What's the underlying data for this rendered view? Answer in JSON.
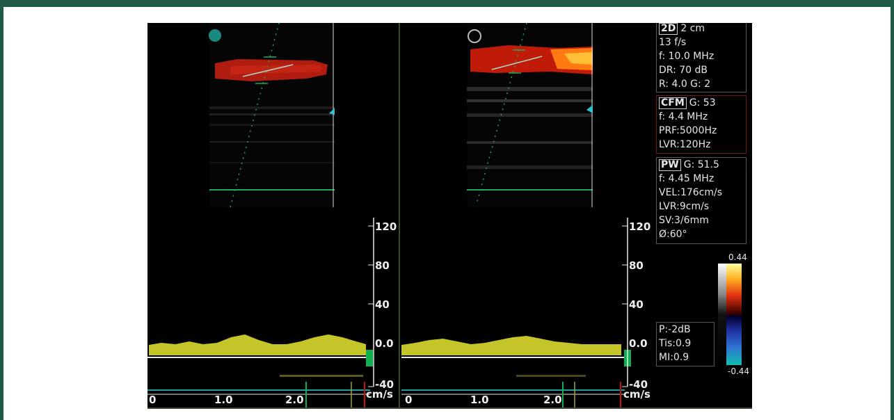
{
  "settings": {
    "twoD": {
      "tag": "2D",
      "depth": "2 cm",
      "rows": [
        "13 f/s",
        "f: 10.0 MHz",
        "DR: 70 dB",
        "R: 4.0    G: 2"
      ]
    },
    "cfm": {
      "tag": "CFM",
      "gain": "G: 53",
      "rows": [
        "f: 4.4 MHz",
        "PRF:5000Hz",
        "LVR:120Hz"
      ]
    },
    "pw": {
      "tag": "PW",
      "gain": "G: 51.5",
      "rows": [
        "f: 4.45 MHz",
        "VEL:176cm/s",
        "LVR:9cm/s",
        "SV:3/6mm",
        "Ø:60°"
      ]
    },
    "safety": [
      "P:-2dB",
      "Tis:0.9",
      "MI:0.9"
    ]
  },
  "colorbar": {
    "top": "0.44",
    "bottom": "-0.44"
  },
  "velocity_scale": {
    "ticks": [
      "120",
      "80",
      "40",
      "0.0",
      "-40"
    ],
    "unit": "cm/s"
  },
  "time_axis": {
    "ticks": [
      "0",
      "1.0",
      "2.0"
    ]
  },
  "colors": {
    "frame": "#1f5a45",
    "spectrum": "#e8e830",
    "flow": "#c02010",
    "grid_green": "#1faa60"
  }
}
